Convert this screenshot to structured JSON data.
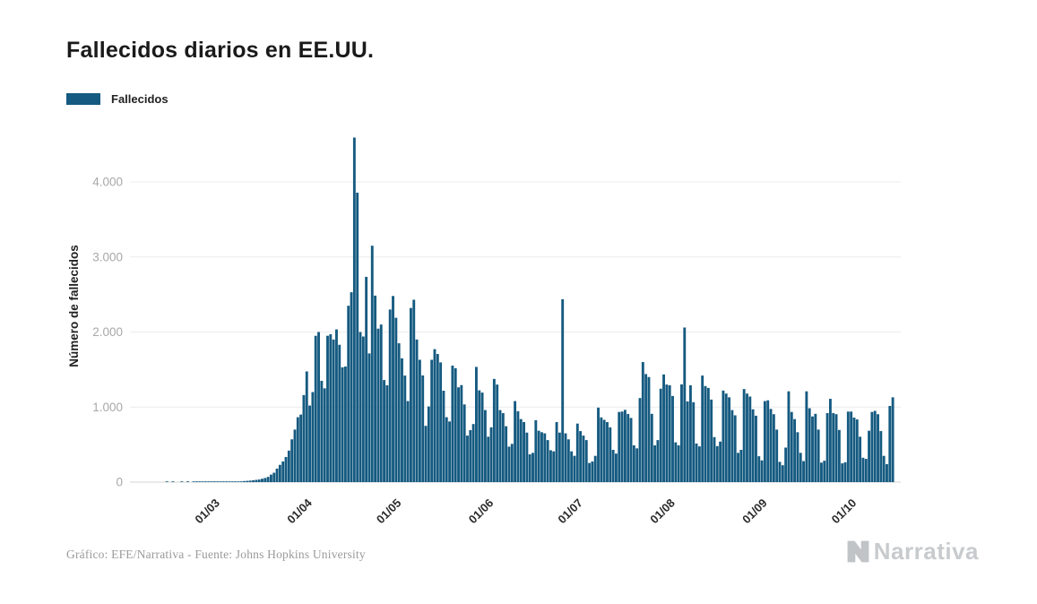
{
  "page": {
    "title": "Fallecidos diarios en EE.UU.",
    "footer": "Gráfico: EFE/Narrativa - Fuente: Johns Hopkins University",
    "logo_text": "Narrativa"
  },
  "legend": {
    "label": "Fallecidos"
  },
  "colors": {
    "bar": "#155A80",
    "grid": "#ececec",
    "axis_line": "#d6d6d6",
    "y_tick_text": "#a8a8a8",
    "x_tick_text": "#2b2b2b",
    "axis_title_text": "#222222",
    "title_text": "#1a1a1a",
    "footer_text": "#9b9b9b",
    "logo": "#c8cbcd"
  },
  "chart_data": {
    "type": "bar",
    "title": "Fallecidos diarios en EE.UU.",
    "series_name": "Fallecidos",
    "xlabel": "",
    "ylabel": "Número de fallecidos",
    "ylim": [
      0,
      4700
    ],
    "grid": "horizontal",
    "legend_position": "top-left",
    "start_date": "2020-02-01",
    "y_ticks": [
      {
        "value": 0,
        "label": "0"
      },
      {
        "value": 1000,
        "label": "1.000"
      },
      {
        "value": 2000,
        "label": "2.000"
      },
      {
        "value": 3000,
        "label": "3.000"
      },
      {
        "value": 4000,
        "label": "4.000"
      }
    ],
    "x_ticks": [
      {
        "day_index": 29,
        "label": "01/03"
      },
      {
        "day_index": 60,
        "label": "01/04"
      },
      {
        "day_index": 90,
        "label": "01/05"
      },
      {
        "day_index": 121,
        "label": "01/06"
      },
      {
        "day_index": 151,
        "label": "01/07"
      },
      {
        "day_index": 182,
        "label": "01/08"
      },
      {
        "day_index": 213,
        "label": "01/09"
      },
      {
        "day_index": 243,
        "label": "01/10"
      }
    ],
    "values": [
      0,
      0,
      0,
      0,
      0,
      0,
      0,
      0,
      0,
      0,
      0,
      0,
      1,
      0,
      1,
      0,
      0,
      1,
      0,
      1,
      0,
      1,
      1,
      1,
      2,
      2,
      2,
      3,
      4,
      3,
      5,
      6,
      4,
      5,
      6,
      7,
      8,
      10,
      14,
      17,
      20,
      25,
      30,
      35,
      45,
      55,
      70,
      100,
      125,
      180,
      230,
      275,
      335,
      420,
      570,
      700,
      865,
      900,
      1160,
      1475,
      1020,
      1200,
      1950,
      2000,
      1350,
      1250,
      1950,
      1970,
      1900,
      2035,
      1830,
      1530,
      1540,
      2350,
      2530,
      4591,
      3857,
      2000,
      1940,
      2735,
      1715,
      3150,
      2485,
      2045,
      2100,
      1360,
      1290,
      2300,
      2480,
      2190,
      1850,
      1650,
      1420,
      1080,
      2320,
      2430,
      1900,
      1630,
      1422,
      750,
      1008,
      1630,
      1772,
      1707,
      1595,
      1218,
      865,
      808,
      1552,
      1518,
      1263,
      1293,
      1035,
      620,
      693,
      774,
      1535,
      1223,
      1193,
      960,
      605,
      730,
      1375,
      1300,
      960,
      920,
      745,
      473,
      510,
      1080,
      945,
      840,
      800,
      660,
      370,
      390,
      825,
      685,
      665,
      650,
      560,
      425,
      410,
      800,
      660,
      2437,
      650,
      570,
      410,
      350,
      780,
      680,
      620,
      560,
      255,
      275,
      350,
      993,
      862,
      830,
      800,
      730,
      430,
      380,
      935,
      940,
      963,
      908,
      855,
      490,
      450,
      1120,
      1600,
      1440,
      1400,
      910,
      490,
      560,
      1245,
      1435,
      1300,
      1290,
      1148,
      530,
      490,
      1302,
      2060,
      1075,
      1290,
      1065,
      514,
      476,
      1420,
      1280,
      1255,
      1100,
      600,
      480,
      540,
      1220,
      1180,
      1130,
      960,
      890,
      390,
      430,
      1240,
      1180,
      1140,
      970,
      885,
      345,
      290,
      1080,
      1090,
      975,
      905,
      700,
      270,
      225,
      460,
      1210,
      935,
      840,
      665,
      390,
      280,
      1210,
      985,
      875,
      910,
      700,
      260,
      285,
      920,
      1110,
      920,
      905,
      695,
      250,
      265,
      940,
      940,
      860,
      835,
      605,
      325,
      310,
      685,
      935,
      950,
      905,
      680,
      350,
      240,
      1015,
      1130
    ]
  }
}
